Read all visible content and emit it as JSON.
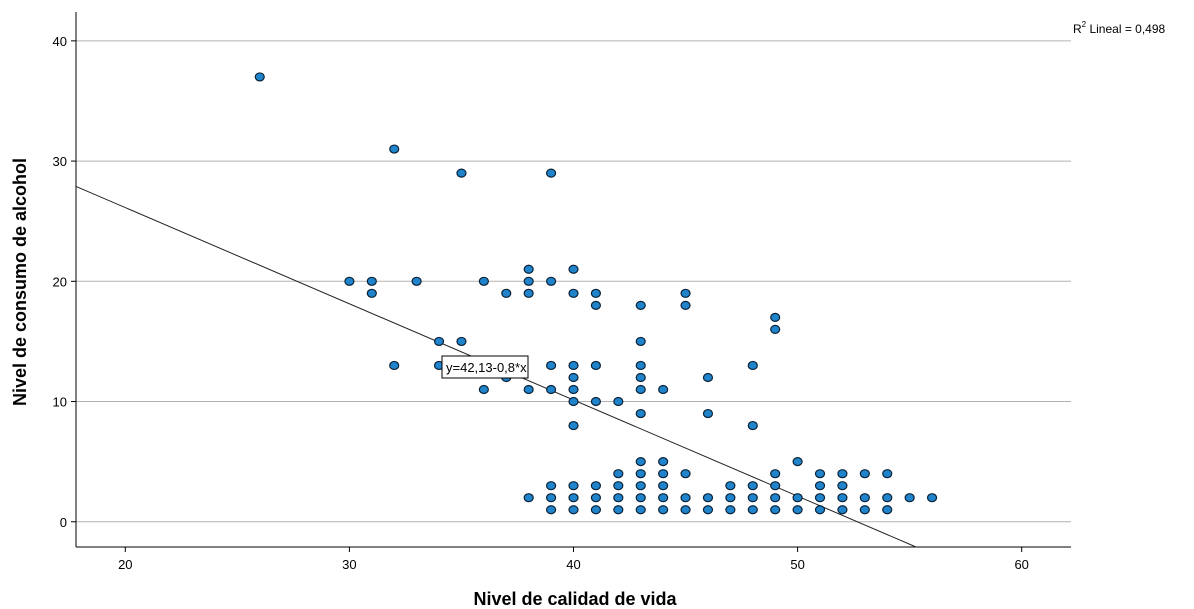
{
  "chart_data": {
    "type": "scatter",
    "xlabel": "Nivel de calidad de vida",
    "ylabel": "Nivel de consumo de alcohol",
    "xlim": [
      17.8,
      62.2
    ],
    "ylim": [
      -2.1,
      42.4
    ],
    "xticks": [
      20,
      30,
      40,
      50,
      60
    ],
    "yticks": [
      0,
      10,
      20,
      30,
      40
    ],
    "grid": "horizontal",
    "fit_line": {
      "intercept": 42.13,
      "slope": -0.8,
      "label": "y=42,13-0,8*x"
    },
    "r2_label": {
      "prefix": "R",
      "sup": "2",
      "rest": " Lineal = 0,498"
    },
    "point_color": "#1f84cc",
    "points": [
      [
        26,
        37
      ],
      [
        32,
        31
      ],
      [
        35,
        29
      ],
      [
        39,
        29
      ],
      [
        30,
        20
      ],
      [
        31,
        20
      ],
      [
        31,
        19
      ],
      [
        33,
        20
      ],
      [
        36,
        20
      ],
      [
        37,
        19
      ],
      [
        38,
        21
      ],
      [
        38,
        20
      ],
      [
        38,
        19
      ],
      [
        39,
        20
      ],
      [
        40,
        21
      ],
      [
        40,
        19
      ],
      [
        41,
        19
      ],
      [
        41,
        18
      ],
      [
        43,
        18
      ],
      [
        45,
        19
      ],
      [
        45,
        18
      ],
      [
        34,
        15
      ],
      [
        35,
        15
      ],
      [
        32,
        13
      ],
      [
        34,
        13
      ],
      [
        35,
        13
      ],
      [
        37,
        12
      ],
      [
        36,
        11
      ],
      [
        38,
        11
      ],
      [
        39,
        11
      ],
      [
        39,
        13
      ],
      [
        40,
        13
      ],
      [
        40,
        12
      ],
      [
        40,
        11
      ],
      [
        40,
        10
      ],
      [
        40,
        8
      ],
      [
        41,
        13
      ],
      [
        41,
        10
      ],
      [
        42,
        10
      ],
      [
        43,
        15
      ],
      [
        43,
        13
      ],
      [
        43,
        12
      ],
      [
        43,
        11
      ],
      [
        43,
        9
      ],
      [
        44,
        11
      ],
      [
        46,
        12
      ],
      [
        46,
        9
      ],
      [
        48,
        13
      ],
      [
        48,
        8
      ],
      [
        49,
        17
      ],
      [
        49,
        16
      ],
      [
        43,
        5
      ],
      [
        44,
        5
      ],
      [
        42,
        4
      ],
      [
        43,
        4
      ],
      [
        44,
        4
      ],
      [
        45,
        4
      ],
      [
        49,
        4
      ],
      [
        50,
        5
      ],
      [
        51,
        4
      ],
      [
        52,
        4
      ],
      [
        53,
        4
      ],
      [
        54,
        4
      ],
      [
        39,
        3
      ],
      [
        40,
        3
      ],
      [
        41,
        3
      ],
      [
        42,
        3
      ],
      [
        43,
        3
      ],
      [
        44,
        3
      ],
      [
        47,
        3
      ],
      [
        48,
        3
      ],
      [
        49,
        3
      ],
      [
        51,
        3
      ],
      [
        52,
        3
      ],
      [
        38,
        2
      ],
      [
        39,
        2
      ],
      [
        40,
        2
      ],
      [
        41,
        2
      ],
      [
        42,
        2
      ],
      [
        43,
        2
      ],
      [
        44,
        2
      ],
      [
        45,
        2
      ],
      [
        46,
        2
      ],
      [
        47,
        2
      ],
      [
        48,
        2
      ],
      [
        49,
        2
      ],
      [
        50,
        2
      ],
      [
        51,
        2
      ],
      [
        52,
        2
      ],
      [
        53,
        2
      ],
      [
        54,
        2
      ],
      [
        55,
        2
      ],
      [
        56,
        2
      ],
      [
        39,
        1
      ],
      [
        40,
        1
      ],
      [
        41,
        1
      ],
      [
        42,
        1
      ],
      [
        43,
        1
      ],
      [
        44,
        1
      ],
      [
        45,
        1
      ],
      [
        46,
        1
      ],
      [
        47,
        1
      ],
      [
        48,
        1
      ],
      [
        49,
        1
      ],
      [
        50,
        1
      ],
      [
        51,
        1
      ],
      [
        52,
        1
      ],
      [
        53,
        1
      ],
      [
        54,
        1
      ]
    ]
  }
}
